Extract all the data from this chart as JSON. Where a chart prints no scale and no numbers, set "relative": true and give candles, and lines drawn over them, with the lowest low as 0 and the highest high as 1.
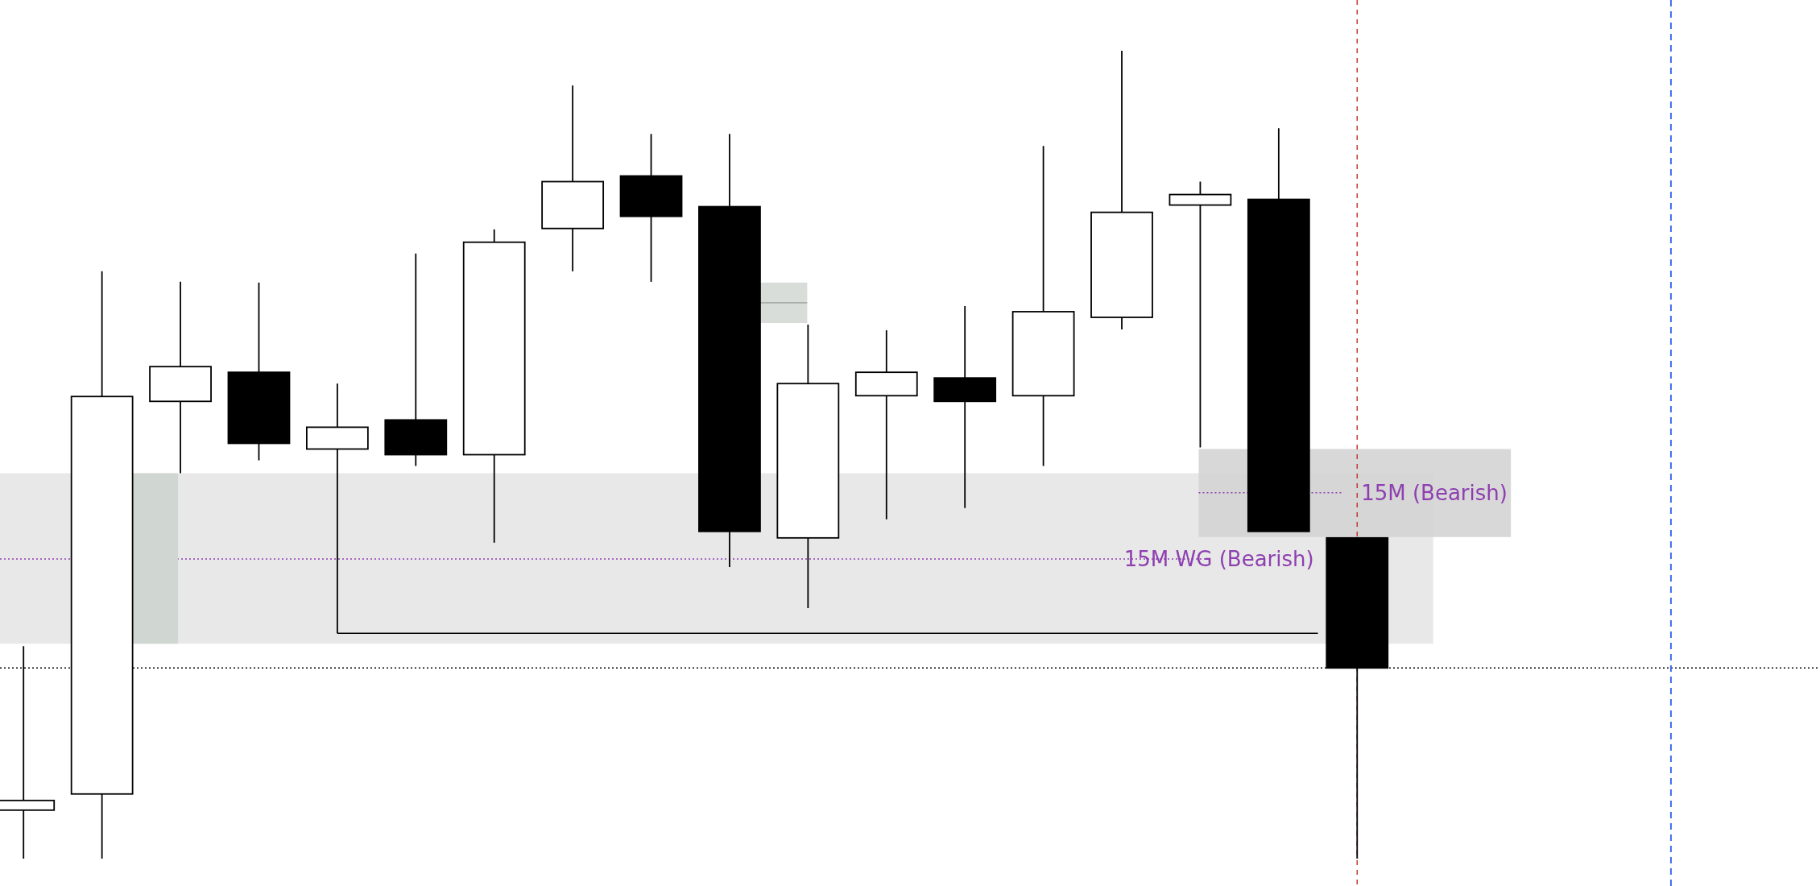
{
  "chart_data": {
    "type": "candlestick",
    "relative": true,
    "categories": [
      null,
      null,
      null,
      null,
      null,
      null,
      null,
      null,
      null,
      null,
      null,
      null,
      null,
      null,
      null,
      null,
      null,
      null
    ],
    "ohlc": [
      [
        0.06,
        0.263,
        0,
        0.072
      ],
      [
        0.08,
        0.727,
        0,
        0.572
      ],
      [
        0.566,
        0.714,
        0.477,
        0.609
      ],
      [
        0.602,
        0.713,
        0.493,
        0.514
      ],
      [
        0.507,
        0.588,
        0.279,
        0.534
      ],
      [
        0.543,
        0.749,
        0.486,
        0.5
      ],
      [
        0.5,
        0.779,
        0.391,
        0.763
      ],
      [
        0.78,
        0.957,
        0.727,
        0.838
      ],
      [
        0.845,
        0.897,
        0.714,
        0.795
      ],
      [
        0.807,
        0.897,
        0.361,
        0.405
      ],
      [
        0.397,
        0.661,
        0.31,
        0.588
      ],
      [
        0.573,
        0.654,
        0.42,
        0.602
      ],
      [
        0.595,
        0.684,
        0.434,
        0.566
      ],
      [
        0.573,
        0.882,
        0.486,
        0.677
      ],
      [
        0.67,
        1,
        0.655,
        0.8
      ],
      [
        0.809,
        0.838,
        0.509,
        0.822
      ],
      [
        0.816,
        0.904,
        0.405,
        0.405
      ],
      [
        0.397,
        0.397,
        0,
        0.236
      ]
    ],
    "bands": [
      {
        "axis": "y",
        "from": 0.266,
        "to": 0.477,
        "color": "#e6e6e6"
      },
      {
        "axis": "y",
        "from": 0.398,
        "to": 0.507,
        "color": "#d4d4d4"
      }
    ],
    "ref_lines": [
      {
        "axis": "y",
        "value": 0.236,
        "color": "#000000",
        "line_style": "dotted"
      },
      {
        "axis": "y",
        "value": 0.371,
        "label": "15M WG (Bearish)",
        "color": "#8e3fb0",
        "line_style": "dotted"
      },
      {
        "axis": "y",
        "value": 0.453,
        "label": "15M (Bearish)",
        "color": "#8e3fb0",
        "line_style": "dotted"
      },
      {
        "axis": "y",
        "value": 0.279,
        "color": "#000000",
        "line_style": "solid"
      }
    ]
  }
}
